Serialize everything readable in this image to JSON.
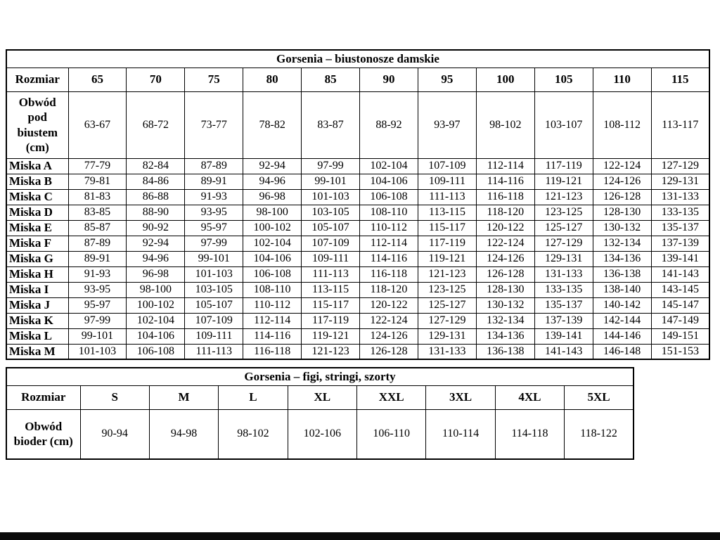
{
  "tables": [
    {
      "title": "Gorsenia – biustonosze damskie",
      "header": [
        "Rozmiar",
        "65",
        "70",
        "75",
        "80",
        "85",
        "90",
        "95",
        "100",
        "105",
        "110",
        "115"
      ],
      "rows": [
        {
          "label": "Obwód pod biustem (cm)",
          "values": [
            "63-67",
            "68-72",
            "73-77",
            "78-82",
            "83-87",
            "88-92",
            "93-97",
            "98-102",
            "103-107",
            "108-112",
            "113-117"
          ]
        },
        {
          "label": "Miska A",
          "values": [
            "77-79",
            "82-84",
            "87-89",
            "92-94",
            "97-99",
            "102-104",
            "107-109",
            "112-114",
            "117-119",
            "122-124",
            "127-129"
          ]
        },
        {
          "label": "Miska B",
          "values": [
            "79-81",
            "84-86",
            "89-91",
            "94-96",
            "99-101",
            "104-106",
            "109-111",
            "114-116",
            "119-121",
            "124-126",
            "129-131"
          ]
        },
        {
          "label": "Miska C",
          "values": [
            "81-83",
            "86-88",
            "91-93",
            "96-98",
            "101-103",
            "106-108",
            "111-113",
            "116-118",
            "121-123",
            "126-128",
            "131-133"
          ]
        },
        {
          "label": "Miska D",
          "values": [
            "83-85",
            "88-90",
            "93-95",
            "98-100",
            "103-105",
            "108-110",
            "113-115",
            "118-120",
            "123-125",
            "128-130",
            "133-135"
          ]
        },
        {
          "label": "Miska E",
          "values": [
            "85-87",
            "90-92",
            "95-97",
            "100-102",
            "105-107",
            "110-112",
            "115-117",
            "120-122",
            "125-127",
            "130-132",
            "135-137"
          ]
        },
        {
          "label": "Miska F",
          "values": [
            "87-89",
            "92-94",
            "97-99",
            "102-104",
            "107-109",
            "112-114",
            "117-119",
            "122-124",
            "127-129",
            "132-134",
            "137-139"
          ]
        },
        {
          "label": "Miska G",
          "values": [
            "89-91",
            "94-96",
            "99-101",
            "104-106",
            "109-111",
            "114-116",
            "119-121",
            "124-126",
            "129-131",
            "134-136",
            "139-141"
          ]
        },
        {
          "label": "Miska H",
          "values": [
            "91-93",
            "96-98",
            "101-103",
            "106-108",
            "111-113",
            "116-118",
            "121-123",
            "126-128",
            "131-133",
            "136-138",
            "141-143"
          ]
        },
        {
          "label": "Miska I",
          "values": [
            "93-95",
            "98-100",
            "103-105",
            "108-110",
            "113-115",
            "118-120",
            "123-125",
            "128-130",
            "133-135",
            "138-140",
            "143-145"
          ]
        },
        {
          "label": "Miska J",
          "values": [
            "95-97",
            "100-102",
            "105-107",
            "110-112",
            "115-117",
            "120-122",
            "125-127",
            "130-132",
            "135-137",
            "140-142",
            "145-147"
          ]
        },
        {
          "label": "Miska K",
          "values": [
            "97-99",
            "102-104",
            "107-109",
            "112-114",
            "117-119",
            "122-124",
            "127-129",
            "132-134",
            "137-139",
            "142-144",
            "147-149"
          ]
        },
        {
          "label": "Miska L",
          "values": [
            "99-101",
            "104-106",
            "109-111",
            "114-116",
            "119-121",
            "124-126",
            "129-131",
            "134-136",
            "139-141",
            "144-146",
            "149-151"
          ]
        },
        {
          "label": "Miska M",
          "values": [
            "101-103",
            "106-108",
            "111-113",
            "116-118",
            "121-123",
            "126-128",
            "131-133",
            "136-138",
            "141-143",
            "146-148",
            "151-153"
          ]
        }
      ]
    },
    {
      "title": "Gorsenia – figi, stringi, szorty",
      "header": [
        "Rozmiar",
        "S",
        "M",
        "L",
        "XL",
        "XXL",
        "3XL",
        "4XL",
        "5XL"
      ],
      "rows": [
        {
          "label": "Obwód bioder (cm)",
          "values": [
            "90-94",
            "94-98",
            "98-102",
            "102-106",
            "106-110",
            "110-114",
            "114-118",
            "118-122"
          ]
        }
      ]
    }
  ]
}
